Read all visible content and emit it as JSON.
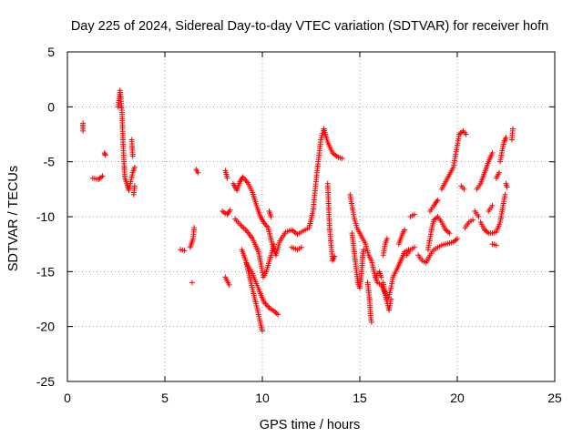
{
  "chart_data": {
    "type": "scatter",
    "title": "Day 225 of 2024, Sidereal Day-to-day VTEC variation (SDTVAR) for receiver hofn",
    "xlabel": "GPS time / hours",
    "ylabel": "SDTVAR / TECUs",
    "xlim": [
      0,
      25
    ],
    "ylim": [
      -25,
      5
    ],
    "xticks": [
      0,
      5,
      10,
      15,
      20,
      25
    ],
    "yticks": [
      -25,
      -20,
      -15,
      -10,
      -5,
      0,
      5
    ],
    "grid": true,
    "marker": "+",
    "color": "#ff0000",
    "segments": [
      [
        [
          0.8,
          -1.5
        ],
        [
          0.8,
          -2.2
        ]
      ],
      [
        [
          1.3,
          -6.5
        ],
        [
          1.6,
          -6.6
        ],
        [
          1.8,
          -6.3
        ]
      ],
      [
        [
          1.9,
          -4.2
        ],
        [
          1.95,
          -4.4
        ]
      ],
      [
        [
          2.6,
          0.0
        ],
        [
          2.7,
          1.5
        ],
        [
          2.75,
          0.5
        ],
        [
          2.8,
          -0.5
        ],
        [
          2.85,
          -3.0
        ],
        [
          2.9,
          -5.0
        ],
        [
          2.95,
          -6.5
        ],
        [
          3.05,
          -7.0
        ],
        [
          3.15,
          -7.6
        ],
        [
          3.25,
          -6.8
        ],
        [
          3.35,
          -6.0
        ],
        [
          3.45,
          -5.5
        ]
      ],
      [
        [
          3.3,
          -3.0
        ],
        [
          3.35,
          -4.5
        ]
      ],
      [
        [
          3.4,
          -8.0
        ],
        [
          3.45,
          -7.2
        ]
      ],
      [
        [
          5.8,
          -13.0
        ],
        [
          6.0,
          -13.1
        ]
      ],
      [
        [
          6.3,
          -12.8
        ],
        [
          6.45,
          -12.0
        ],
        [
          6.5,
          -11.0
        ]
      ],
      [
        [
          6.4,
          -16.0
        ]
      ],
      [
        [
          6.6,
          -5.7
        ],
        [
          6.7,
          -6.0
        ]
      ],
      [
        [
          7.95,
          -9.5
        ],
        [
          8.2,
          -9.8
        ],
        [
          8.35,
          -9.4
        ]
      ],
      [
        [
          8.1,
          -5.8
        ],
        [
          8.2,
          -6.5
        ]
      ],
      [
        [
          8.1,
          -15.5
        ],
        [
          8.3,
          -16.2
        ]
      ],
      [
        [
          8.5,
          -7.0
        ],
        [
          8.7,
          -7.6
        ],
        [
          8.85,
          -6.8
        ],
        [
          9.0,
          -6.4
        ],
        [
          9.25,
          -6.9
        ],
        [
          9.5,
          -7.8
        ],
        [
          9.7,
          -9.0
        ],
        [
          9.9,
          -10.0
        ],
        [
          10.1,
          -10.6
        ],
        [
          10.3,
          -11.0
        ],
        [
          10.5,
          -12.5
        ],
        [
          10.7,
          -13.5
        ],
        [
          10.9,
          -12.2
        ],
        [
          11.2,
          -11.4
        ],
        [
          11.5,
          -11.2
        ],
        [
          11.8,
          -11.6
        ],
        [
          12.1,
          -11.3
        ],
        [
          12.4,
          -11.0
        ],
        [
          12.6,
          -9.5
        ],
        [
          12.8,
          -6.0
        ],
        [
          13.0,
          -3.0
        ],
        [
          13.15,
          -2.0
        ],
        [
          13.35,
          -3.2
        ],
        [
          13.6,
          -4.2
        ],
        [
          13.9,
          -4.6
        ],
        [
          14.1,
          -4.7
        ]
      ],
      [
        [
          8.6,
          -10.2
        ],
        [
          8.9,
          -10.8
        ],
        [
          9.2,
          -11.3
        ],
        [
          9.5,
          -12.0
        ],
        [
          9.8,
          -13.2
        ],
        [
          9.95,
          -14.5
        ],
        [
          10.05,
          -15.5
        ],
        [
          10.2,
          -15.0
        ],
        [
          10.45,
          -13.5
        ],
        [
          10.6,
          -12.5
        ]
      ],
      [
        [
          8.95,
          -13.0
        ],
        [
          9.15,
          -14.0
        ],
        [
          9.35,
          -15.5
        ],
        [
          9.55,
          -17.0
        ],
        [
          9.75,
          -18.5
        ],
        [
          9.9,
          -19.7
        ],
        [
          10.0,
          -20.4
        ]
      ],
      [
        [
          9.2,
          -14.3
        ],
        [
          9.45,
          -15.0
        ],
        [
          9.7,
          -16.1
        ],
        [
          9.9,
          -17.0
        ],
        [
          10.1,
          -17.8
        ],
        [
          10.35,
          -18.3
        ],
        [
          10.6,
          -18.6
        ],
        [
          10.8,
          -18.9
        ]
      ],
      [
        [
          10.35,
          -9.5
        ],
        [
          10.45,
          -10.0
        ]
      ],
      [
        [
          11.5,
          -12.8
        ],
        [
          11.8,
          -13.0
        ],
        [
          12.0,
          -12.8
        ]
      ],
      [
        [
          13.35,
          -7.0
        ],
        [
          13.4,
          -9.0
        ],
        [
          13.45,
          -11.0
        ],
        [
          13.55,
          -13.0
        ],
        [
          13.6,
          -14.0
        ],
        [
          13.7,
          -13.6
        ]
      ],
      [
        [
          14.5,
          -8.0
        ],
        [
          14.6,
          -9.0
        ],
        [
          14.7,
          -10.0
        ],
        [
          14.85,
          -11.0
        ],
        [
          15.0,
          -11.5
        ],
        [
          15.15,
          -12.0
        ],
        [
          15.3,
          -12.5
        ],
        [
          15.45,
          -13.5
        ],
        [
          15.6,
          -14.0
        ],
        [
          15.7,
          -14.8
        ],
        [
          15.8,
          -15.5
        ],
        [
          15.9,
          -16.0
        ],
        [
          16.1,
          -16.2
        ],
        [
          16.3,
          -17.0
        ],
        [
          16.45,
          -17.5
        ],
        [
          16.6,
          -16.5
        ],
        [
          16.7,
          -15.5
        ],
        [
          16.9,
          -14.8
        ],
        [
          17.1,
          -14.0
        ],
        [
          17.3,
          -13.2
        ],
        [
          17.5,
          -13.0
        ]
      ],
      [
        [
          14.6,
          -11.5
        ],
        [
          14.7,
          -13.0
        ],
        [
          14.8,
          -14.5
        ],
        [
          14.9,
          -16.0
        ],
        [
          15.0,
          -16.5
        ],
        [
          15.1,
          -15.0
        ],
        [
          15.15,
          -13.5
        ],
        [
          15.2,
          -13.0
        ]
      ],
      [
        [
          15.4,
          -16.0
        ],
        [
          15.5,
          -17.5
        ],
        [
          15.55,
          -19.0
        ],
        [
          15.6,
          -19.6
        ]
      ],
      [
        [
          15.8,
          -15.5
        ],
        [
          16.0,
          -15.0
        ],
        [
          16.1,
          -15.5
        ]
      ],
      [
        [
          16.2,
          -16.0
        ],
        [
          16.35,
          -17.5
        ],
        [
          16.5,
          -18.5
        ],
        [
          16.6,
          -17.5
        ]
      ],
      [
        [
          16.2,
          -13.5
        ],
        [
          16.3,
          -12.5
        ],
        [
          16.4,
          -12.0
        ]
      ],
      [
        [
          17.0,
          -12.5
        ],
        [
          17.2,
          -11.5
        ],
        [
          17.3,
          -11.2
        ]
      ],
      [
        [
          17.4,
          -13.5
        ],
        [
          17.6,
          -13.0
        ],
        [
          17.8,
          -12.8
        ]
      ],
      [
        [
          17.6,
          -10.0
        ],
        [
          17.8,
          -9.8
        ]
      ],
      [
        [
          18.0,
          -13.5
        ],
        [
          18.2,
          -14.0
        ],
        [
          18.4,
          -14.2
        ],
        [
          18.6,
          -13.5
        ],
        [
          18.8,
          -13.0
        ],
        [
          19.0,
          -12.8
        ],
        [
          19.2,
          -12.6
        ],
        [
          19.4,
          -12.5
        ],
        [
          19.6,
          -12.4
        ],
        [
          19.8,
          -12.3
        ],
        [
          20.0,
          -12.0
        ]
      ],
      [
        [
          18.5,
          -13.0
        ],
        [
          18.6,
          -12.0
        ],
        [
          18.7,
          -11.0
        ],
        [
          18.8,
          -10.3
        ],
        [
          19.0,
          -10.0
        ],
        [
          19.2,
          -10.5
        ],
        [
          19.4,
          -11.2
        ],
        [
          19.6,
          -11.5
        ]
      ],
      [
        [
          18.6,
          -9.5
        ],
        [
          18.8,
          -9.0
        ],
        [
          18.9,
          -8.7
        ],
        [
          19.0,
          -8.5
        ]
      ],
      [
        [
          19.2,
          -7.5
        ],
        [
          19.5,
          -6.5
        ],
        [
          19.8,
          -5.5
        ],
        [
          20.0,
          -3.5
        ],
        [
          20.1,
          -2.5
        ],
        [
          20.3,
          -2.2
        ],
        [
          20.45,
          -2.5
        ]
      ],
      [
        [
          20.2,
          -7.2
        ],
        [
          20.35,
          -7.5
        ]
      ],
      [
        [
          20.4,
          -11.0
        ],
        [
          20.6,
          -10.5
        ],
        [
          20.8,
          -10.3
        ]
      ],
      [
        [
          20.9,
          -9.5
        ],
        [
          21.1,
          -10.0
        ]
      ],
      [
        [
          21.0,
          -7.5
        ],
        [
          21.2,
          -7.0
        ],
        [
          21.4,
          -6.0
        ],
        [
          21.6,
          -5.0
        ],
        [
          21.8,
          -4.2
        ]
      ],
      [
        [
          21.2,
          -10.5
        ],
        [
          21.4,
          -11.2
        ],
        [
          21.6,
          -11.5
        ],
        [
          21.8,
          -11.5
        ],
        [
          22.0,
          -11.4
        ],
        [
          22.2,
          -10.5
        ],
        [
          22.35,
          -9.0
        ],
        [
          22.45,
          -8.0
        ]
      ],
      [
        [
          21.6,
          -9.5
        ],
        [
          21.8,
          -9.0
        ]
      ],
      [
        [
          21.8,
          -12.5
        ],
        [
          22.0,
          -12.6
        ]
      ],
      [
        [
          22.0,
          -6.5
        ],
        [
          22.15,
          -6.0
        ]
      ],
      [
        [
          22.2,
          -5.0
        ],
        [
          22.3,
          -4.0
        ],
        [
          22.4,
          -3.2
        ],
        [
          22.5,
          -2.8
        ]
      ],
      [
        [
          22.5,
          -7.0
        ],
        [
          22.55,
          -7.3
        ]
      ],
      [
        [
          22.8,
          -3.0
        ],
        [
          22.85,
          -2.0
        ]
      ]
    ]
  }
}
